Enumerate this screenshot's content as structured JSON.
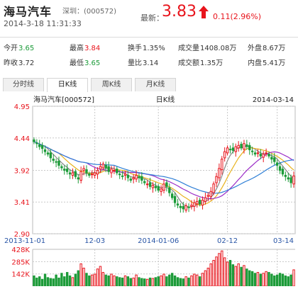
{
  "stock": {
    "name": "海马汽车",
    "code": "深圳：(000572)",
    "datetime": "2014-3-18 11:31:33",
    "last_label": "最新：",
    "last_price": "3.83",
    "change": "0.11(2.96%)"
  },
  "stats": {
    "open_label": "今开",
    "open": "3.65",
    "high_label": "最高",
    "high": "3.84",
    "turnover_label": "换手",
    "turnover": "1.35%",
    "volume_label": "成交量",
    "volume": "1408.08万",
    "outer_label": "外盘",
    "outer": "8.67万",
    "prev_close_label": "昨收",
    "prev_close": "3.72",
    "low_label": "最低",
    "low": "3.65",
    "vol_ratio_label": "量比",
    "vol_ratio": "3.14",
    "amount_label": "成交额",
    "amount": "1.35万",
    "inner_label": "内盘",
    "inner": "5.41万"
  },
  "tabs": [
    {
      "label": "分时线",
      "active": false
    },
    {
      "label": "日K线",
      "active": true
    },
    {
      "label": "周K线",
      "active": false
    },
    {
      "label": "月K线",
      "active": false
    }
  ],
  "chart_data": {
    "type": "candlestick",
    "header_left": "海马汽车[000572]",
    "title": "日K线",
    "header_right": "2014-03-14",
    "price_ticks": [
      4.95,
      4.44,
      3.92,
      3.41,
      2.9
    ],
    "ylim": [
      2.9,
      4.95
    ],
    "volume_ticks": [
      "428K",
      "285K",
      "142K"
    ],
    "volume_max": 428,
    "x_tick_labels": [
      "2013-11-01",
      "12-03",
      "2014-01-06",
      "02-12",
      "03-14"
    ],
    "x_tick_index": [
      0,
      22,
      45,
      70,
      88
    ],
    "colors": {
      "up": "#e8141c",
      "down": "#1c9b39",
      "ma5": "#888888",
      "ma10": "#e8b21c",
      "ma20": "#9b2dc7",
      "ma30": "#2f7fd6"
    },
    "closes": [
      4.38,
      4.35,
      4.3,
      4.27,
      4.22,
      4.18,
      4.12,
      4.08,
      4.05,
      4.0,
      3.96,
      3.92,
      3.9,
      3.86,
      3.88,
      3.82,
      3.78,
      3.9,
      3.95,
      3.88,
      3.84,
      3.86,
      3.88,
      3.92,
      3.98,
      4.02,
      3.96,
      3.9,
      3.94,
      3.92,
      3.88,
      3.85,
      3.82,
      3.86,
      3.8,
      3.76,
      3.8,
      3.84,
      3.8,
      3.76,
      3.72,
      3.7,
      3.66,
      3.68,
      3.64,
      3.6,
      3.62,
      3.7,
      3.66,
      3.56,
      3.48,
      3.4,
      3.36,
      3.32,
      3.3,
      3.35,
      3.32,
      3.36,
      3.4,
      3.42,
      3.38,
      3.44,
      3.48,
      3.52,
      3.58,
      3.7,
      3.82,
      3.95,
      4.1,
      4.22,
      4.28,
      4.26,
      4.24,
      4.3,
      4.32,
      4.28,
      4.35,
      4.3,
      4.25,
      4.22,
      4.18,
      4.2,
      4.15,
      4.18,
      4.2,
      4.15,
      4.1,
      4.06,
      4.0,
      3.92,
      3.86,
      3.82,
      3.78,
      3.72,
      3.83
    ],
    "volumes": [
      120,
      95,
      110,
      80,
      140,
      100,
      90,
      85,
      130,
      95,
      150,
      110,
      160,
      120,
      100,
      140,
      180,
      260,
      210,
      150,
      120,
      130,
      140,
      200,
      230,
      160,
      130,
      120,
      140,
      120,
      110,
      100,
      95,
      120,
      110,
      90,
      95,
      130,
      100,
      90,
      85,
      80,
      95,
      90,
      100,
      110,
      120,
      140,
      110,
      130,
      150,
      120,
      100,
      90,
      85,
      110,
      95,
      120,
      140,
      130,
      110,
      150,
      180,
      210,
      260,
      300,
      340,
      380,
      410,
      330,
      280,
      300,
      250,
      230,
      260,
      220,
      240,
      200,
      180,
      170,
      150,
      160,
      140,
      150,
      170,
      160,
      140,
      120,
      130,
      150,
      140,
      120,
      110,
      130,
      190
    ]
  }
}
